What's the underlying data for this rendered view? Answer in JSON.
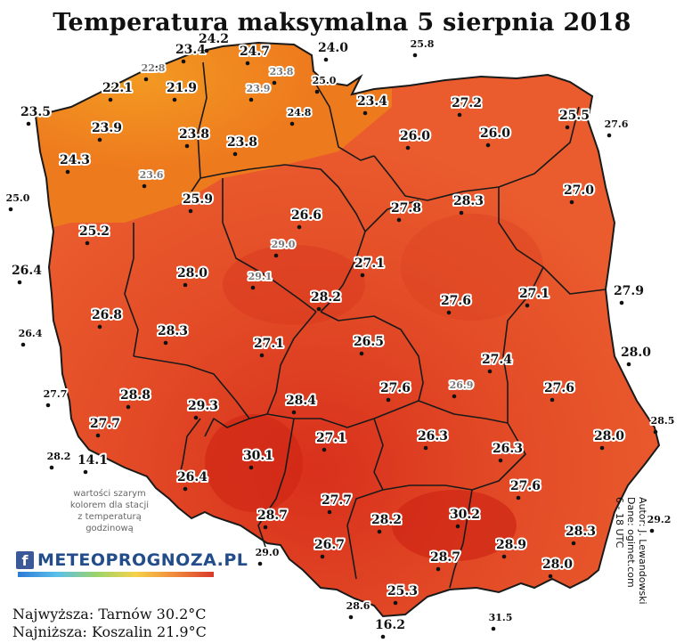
{
  "title": "Temperatura maksymalna 5 sierpnia 2018",
  "note_lines": [
    "wartości szarym",
    "kolorem dla stacji",
    "z temperaturą",
    "godzinową"
  ],
  "logo": {
    "f": "f",
    "text": "METEOPROGNOZA.PL"
  },
  "summary": {
    "highest": "Najwyższa: Tarnów 30.2°C",
    "lowest": "Najniższa: Koszalin 21.9°C"
  },
  "credits": [
    "Autor: J. Lewandowski",
    "Dane: ogimet.com",
    "6 - 18 UTC"
  ],
  "colors": {
    "outside": "#ffffff",
    "north": "#f28a1c",
    "center": "#e8502a",
    "south": "#de3a22",
    "hot": "#d62a1a",
    "border": "#1a1a1a"
  },
  "stations": [
    {
      "value": "23.4",
      "gray": false
    },
    {
      "value": "24.2",
      "gray": false
    },
    {
      "value": "24.7",
      "gray": false
    },
    {
      "value": "24.0",
      "gray": false
    },
    {
      "value": "25.8",
      "gray": false
    },
    {
      "value": "22.8",
      "gray": true
    },
    {
      "value": "23.8",
      "gray": true
    },
    {
      "value": "25.0",
      "gray": false
    },
    {
      "value": "22.1",
      "gray": false
    },
    {
      "value": "21.9",
      "gray": false
    },
    {
      "value": "23.9",
      "gray": true
    },
    {
      "value": "24.8",
      "gray": false
    },
    {
      "value": "23.4",
      "gray": false
    },
    {
      "value": "27.2",
      "gray": false
    },
    {
      "value": "25.5",
      "gray": false
    },
    {
      "value": "23.5",
      "gray": false
    },
    {
      "value": "27.6",
      "gray": false
    },
    {
      "value": "23.9",
      "gray": false
    },
    {
      "value": "23.8",
      "gray": false
    },
    {
      "value": "23.8",
      "gray": false
    },
    {
      "value": "26.0",
      "gray": false
    },
    {
      "value": "26.0",
      "gray": false
    },
    {
      "value": "24.3",
      "gray": false
    },
    {
      "value": "23.6",
      "gray": true
    },
    {
      "value": "25.0",
      "gray": false
    },
    {
      "value": "25.9",
      "gray": false
    },
    {
      "value": "27.0",
      "gray": false
    },
    {
      "value": "26.6",
      "gray": false
    },
    {
      "value": "27.8",
      "gray": false
    },
    {
      "value": "28.3",
      "gray": false
    },
    {
      "value": "25.2",
      "gray": false
    },
    {
      "value": "29.0",
      "gray": true
    },
    {
      "value": "26.4",
      "gray": false
    },
    {
      "value": "28.0",
      "gray": false
    },
    {
      "value": "27.1",
      "gray": false
    },
    {
      "value": "29.1",
      "gray": true
    },
    {
      "value": "27.9",
      "gray": false
    },
    {
      "value": "28.2",
      "gray": false
    },
    {
      "value": "27.6",
      "gray": false
    },
    {
      "value": "27.1",
      "gray": false
    },
    {
      "value": "26.8",
      "gray": false
    },
    {
      "value": "26.4",
      "gray": false
    },
    {
      "value": "28.3",
      "gray": false
    },
    {
      "value": "26.5",
      "gray": false
    },
    {
      "value": "27.1",
      "gray": false
    },
    {
      "value": "28.0",
      "gray": false
    },
    {
      "value": "27.4",
      "gray": false
    },
    {
      "value": "27.7",
      "gray": false
    },
    {
      "value": "27.6",
      "gray": false
    },
    {
      "value": "26.9",
      "gray": true
    },
    {
      "value": "27.6",
      "gray": false
    },
    {
      "value": "28.8",
      "gray": false
    },
    {
      "value": "29.3",
      "gray": false
    },
    {
      "value": "28.4",
      "gray": false
    },
    {
      "value": "28.5",
      "gray": false
    },
    {
      "value": "27.7",
      "gray": false
    },
    {
      "value": "26.3",
      "gray": false
    },
    {
      "value": "28.0",
      "gray": false
    },
    {
      "value": "27.1",
      "gray": false
    },
    {
      "value": "28.2",
      "gray": false
    },
    {
      "value": "14.1",
      "gray": false
    },
    {
      "value": "30.1",
      "gray": false
    },
    {
      "value": "26.3",
      "gray": false
    },
    {
      "value": "26.4",
      "gray": false
    },
    {
      "value": "27.7",
      "gray": false
    },
    {
      "value": "27.6",
      "gray": false
    },
    {
      "value": "28.7",
      "gray": false
    },
    {
      "value": "28.2",
      "gray": false
    },
    {
      "value": "30.2",
      "gray": false
    },
    {
      "value": "29.2",
      "gray": false
    },
    {
      "value": "28.3",
      "gray": false
    },
    {
      "value": "28.9",
      "gray": false
    },
    {
      "value": "29.0",
      "gray": false
    },
    {
      "value": "26.7",
      "gray": false
    },
    {
      "value": "28.7",
      "gray": false
    },
    {
      "value": "28.0",
      "gray": false
    },
    {
      "value": "25.3",
      "gray": false
    },
    {
      "value": "28.6",
      "gray": false
    },
    {
      "value": "31.5",
      "gray": false
    },
    {
      "value": "16.2",
      "gray": false
    }
  ]
}
